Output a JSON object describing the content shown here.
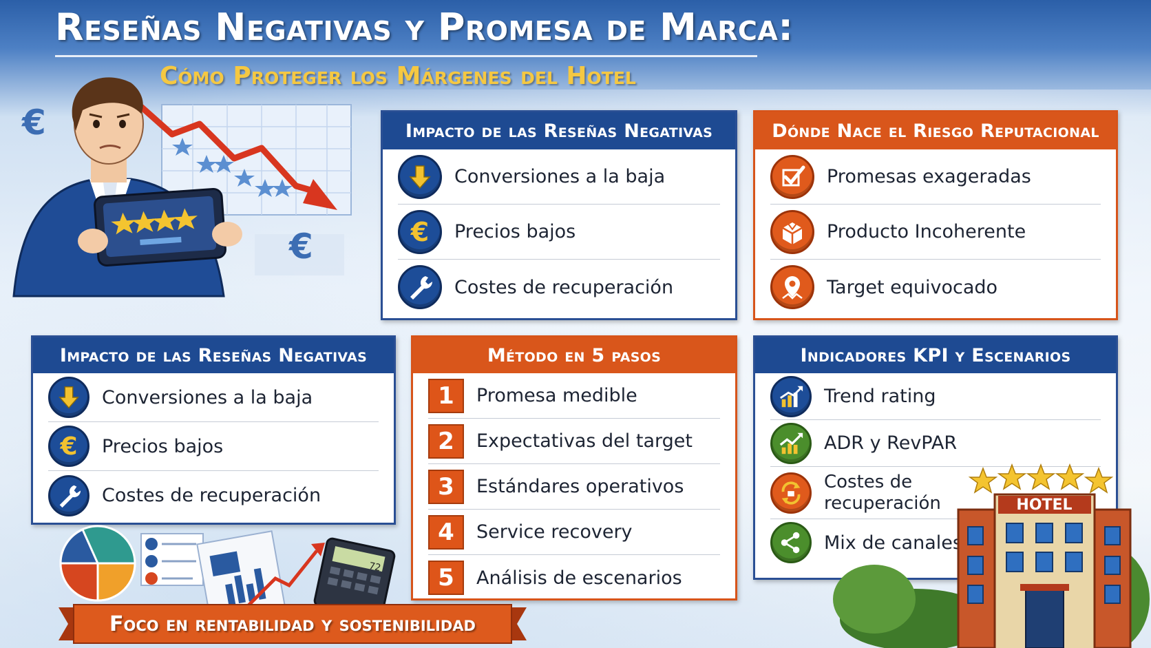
{
  "header": {
    "title": "Reseñas Negativas y Promesa de Marca:",
    "subtitle": "Cómo Proteger los Márgenes del Hotel"
  },
  "panel_top_middle": {
    "title": "Impacto de las Reseñas Negativas",
    "items": [
      {
        "label": "Conversiones a la baja",
        "icon": "arrow-down-icon"
      },
      {
        "label": "Precios bajos",
        "icon": "euro-icon"
      },
      {
        "label": "Costes de recuperación",
        "icon": "wrench-icon"
      }
    ]
  },
  "panel_top_right": {
    "title": "Dónde Nace el Riesgo Reputacional",
    "items": [
      {
        "label": "Promesas exageradas",
        "icon": "checkmark-icon"
      },
      {
        "label": "Producto Incoherente",
        "icon": "broken-box-icon"
      },
      {
        "label": "Target equivocado",
        "icon": "location-pin-icon"
      }
    ]
  },
  "panel_bottom_left": {
    "title": "Impacto de las Reseñas Negativas",
    "items": [
      {
        "label": "Conversiones a la baja",
        "icon": "arrow-down-icon"
      },
      {
        "label": "Precios bajos",
        "icon": "euro-icon"
      },
      {
        "label": "Costes de recuperación",
        "icon": "wrench-icon"
      }
    ]
  },
  "panel_method": {
    "title": "Método en 5 pasos",
    "steps": [
      {
        "num": "1",
        "label": "Promesa medible"
      },
      {
        "num": "2",
        "label": "Expectativas del target"
      },
      {
        "num": "3",
        "label": "Estándares operativos"
      },
      {
        "num": "4",
        "label": "Service recovery"
      },
      {
        "num": "5",
        "label": "Análisis de escenarios"
      }
    ]
  },
  "panel_kpi": {
    "title": "Indicadores KPI y Escenarios",
    "items": [
      {
        "label": "Trend rating",
        "icon": "trend-chart-icon"
      },
      {
        "label": "ADR y RevPAR",
        "icon": "growth-chart-icon"
      },
      {
        "label_line1": "Costes de",
        "label_line2": "recuperación",
        "icon": "refresh-coins-icon"
      },
      {
        "label": "Mix de canales",
        "icon": "share-network-icon"
      }
    ]
  },
  "illustration": {
    "tablet_rating_stars": 4,
    "calculator_display": "72",
    "hotel_sign": "HOTEL",
    "hotel_stars": 5,
    "euro_symbol": "€"
  },
  "footer_banner": {
    "text": "Foco en rentabilidad y sostenibilidad"
  },
  "colors": {
    "navy": "#1e4a92",
    "orange": "#d9561b",
    "gold": "#f5c842",
    "green": "#4b8e2c"
  }
}
